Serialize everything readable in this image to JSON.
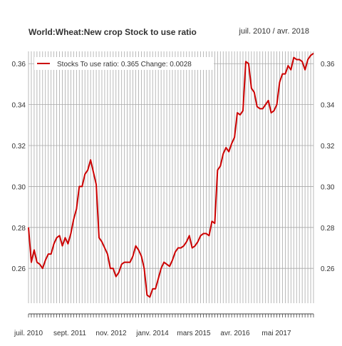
{
  "header": {
    "title": "World:Wheat:New crop Stock to use ratio",
    "date_range": "juil. 2010 / avr. 2018"
  },
  "legend": {
    "label": "Stocks To use ratio: 0.365  Change: 0.0028",
    "color": "#cc0000"
  },
  "chart_data": {
    "type": "line",
    "title": "World:Wheat:New crop Stock to use ratio",
    "x_start": "2010-07",
    "x_end": "2018-04",
    "frequency": "monthly",
    "x_tick_labels": [
      "juil. 2010",
      "sept. 2011",
      "nov. 2012",
      "janv. 2014",
      "mars 2015",
      "avr. 2016",
      "mai 2017"
    ],
    "ylim": [
      0.243,
      0.366
    ],
    "y_ticks": [
      "0.26",
      "0.28",
      "0.30",
      "0.32",
      "0.34",
      "0.36"
    ],
    "grid": true,
    "legend_position": "top-left",
    "series": [
      {
        "name": "Stocks To use ratio",
        "color": "#cc0000",
        "values": [
          0.28,
          0.263,
          0.269,
          0.263,
          0.262,
          0.26,
          0.264,
          0.267,
          0.267,
          0.272,
          0.275,
          0.276,
          0.271,
          0.275,
          0.272,
          0.277,
          0.284,
          0.289,
          0.3,
          0.3,
          0.306,
          0.308,
          0.313,
          0.307,
          0.301,
          0.275,
          0.273,
          0.27,
          0.267,
          0.26,
          0.26,
          0.256,
          0.258,
          0.262,
          0.263,
          0.263,
          0.263,
          0.266,
          0.271,
          0.269,
          0.266,
          0.26,
          0.247,
          0.246,
          0.25,
          0.25,
          0.255,
          0.26,
          0.263,
          0.262,
          0.261,
          0.264,
          0.268,
          0.27,
          0.27,
          0.271,
          0.273,
          0.276,
          0.27,
          0.271,
          0.273,
          0.276,
          0.277,
          0.277,
          0.276,
          0.283,
          0.282,
          0.308,
          0.31,
          0.316,
          0.319,
          0.317,
          0.321,
          0.324,
          0.336,
          0.335,
          0.337,
          0.361,
          0.36,
          0.348,
          0.346,
          0.339,
          0.338,
          0.338,
          0.34,
          0.342,
          0.336,
          0.337,
          0.34,
          0.351,
          0.355,
          0.355,
          0.359,
          0.357,
          0.363,
          0.362,
          0.362,
          0.361,
          0.357,
          0.362,
          0.364,
          0.365
        ]
      }
    ]
  }
}
